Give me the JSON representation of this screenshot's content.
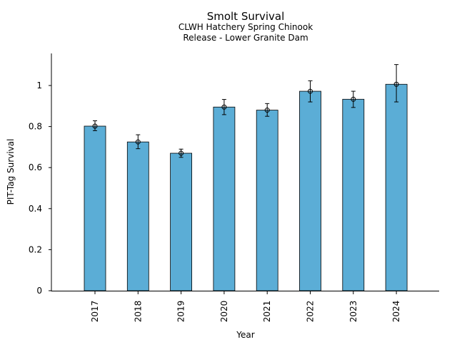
{
  "chart_data": {
    "type": "bar",
    "title": "Smolt Survival",
    "subtitle_lines": [
      "CLWH Hatchery Spring Chinook",
      "Release - Lower Granite Dam"
    ],
    "xlabel": "Year",
    "ylabel": "PIT-Tag Survival",
    "categories": [
      "2017",
      "2018",
      "2019",
      "2020",
      "2021",
      "2022",
      "2023",
      "2024"
    ],
    "values": [
      0.802,
      0.725,
      0.67,
      0.895,
      0.88,
      0.972,
      0.933,
      1.006
    ],
    "error_low": [
      0.78,
      0.692,
      0.65,
      0.858,
      0.85,
      0.92,
      0.893,
      0.92
    ],
    "error_high": [
      0.828,
      0.76,
      0.69,
      0.932,
      0.912,
      1.023,
      0.972,
      1.102
    ],
    "ylim": [
      0,
      1.15
    ],
    "yticks": [
      0,
      0.2,
      0.4,
      0.6,
      0.8,
      1
    ],
    "ytick_labels": [
      "0",
      "0.2",
      "0.4",
      "0.6",
      "0.8",
      "1"
    ],
    "bar_color": "#5badd6",
    "grid": false
  }
}
